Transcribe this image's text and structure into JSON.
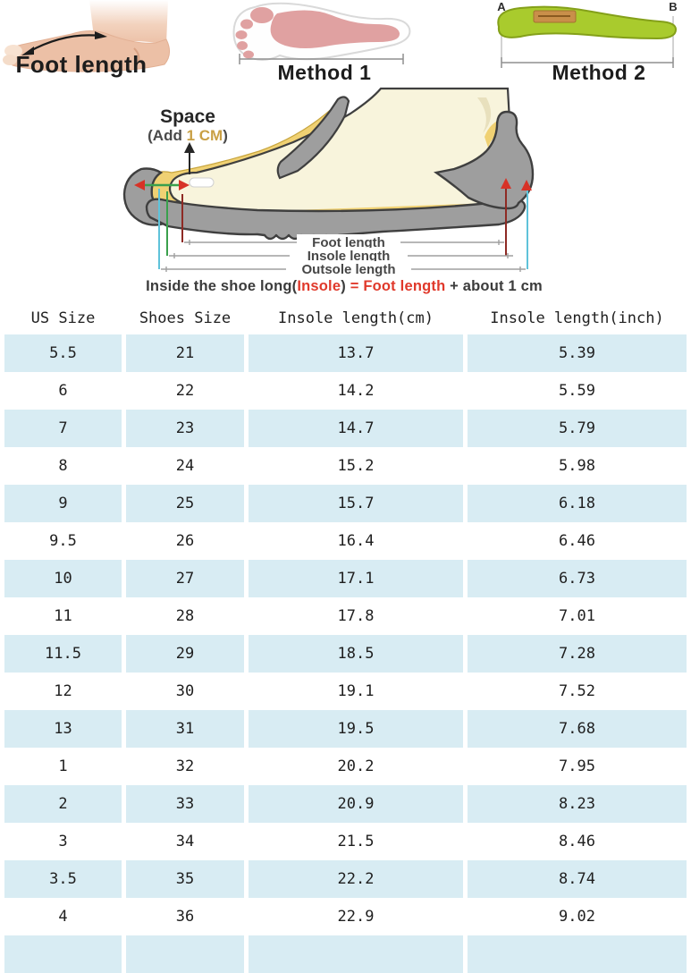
{
  "measure_guide": {
    "foot_photo_label": "Foot length",
    "method1_label": "Method 1",
    "method2_label": "Method 2",
    "insole_point_a": "A",
    "insole_point_b": "B"
  },
  "diagram": {
    "space_title": "Space",
    "space_add_prefix": "(Add ",
    "space_add_value": "1 CM",
    "space_add_suffix": ")",
    "dim_labels": {
      "foot": "Foot length",
      "insole": "Insole length",
      "outsole": "Outsole length"
    },
    "caption_spans": [
      {
        "text": "Inside the shoe long(",
        "color": "#3b3b3b"
      },
      {
        "text": "Insole",
        "color": "#e0392b"
      },
      {
        "text": ") ",
        "color": "#3b3b3b"
      },
      {
        "text": "= ",
        "color": "#e0392b"
      },
      {
        "text": "Foot length",
        "color": "#e0392b"
      },
      {
        "text": " + about 1 cm",
        "color": "#3b3b3b"
      }
    ]
  },
  "size_table": {
    "columns": [
      "US Size",
      "Shoes Size",
      "Insole length(cm)",
      "Insole length(inch)"
    ],
    "rows": [
      [
        "5.5",
        "21",
        "13.7",
        "5.39"
      ],
      [
        "6",
        "22",
        "14.2",
        "5.59"
      ],
      [
        "7",
        "23",
        "14.7",
        "5.79"
      ],
      [
        "8",
        "24",
        "15.2",
        "5.98"
      ],
      [
        "9",
        "25",
        "15.7",
        "6.18"
      ],
      [
        "9.5",
        "26",
        "16.4",
        "6.46"
      ],
      [
        "10",
        "27",
        "17.1",
        "6.73"
      ],
      [
        "11",
        "28",
        "17.8",
        "7.01"
      ],
      [
        "11.5",
        "29",
        "18.5",
        "7.28"
      ],
      [
        "12",
        "30",
        "19.1",
        "7.52"
      ],
      [
        "13",
        "31",
        "19.5",
        "7.68"
      ],
      [
        "1",
        "32",
        "20.2",
        "7.95"
      ],
      [
        "2",
        "33",
        "20.9",
        "8.23"
      ],
      [
        "3",
        "34",
        "21.5",
        "8.46"
      ],
      [
        "3.5",
        "35",
        "22.2",
        "8.74"
      ],
      [
        "4",
        "36",
        "22.9",
        "9.02"
      ]
    ]
  },
  "colors": {
    "table_stripe": "#d8ecf3",
    "accent_red": "#e0392b",
    "space_value_color": "#c9a045",
    "insole_green": "#a9cb2d",
    "footprint_pink": "#e0a1a1"
  }
}
